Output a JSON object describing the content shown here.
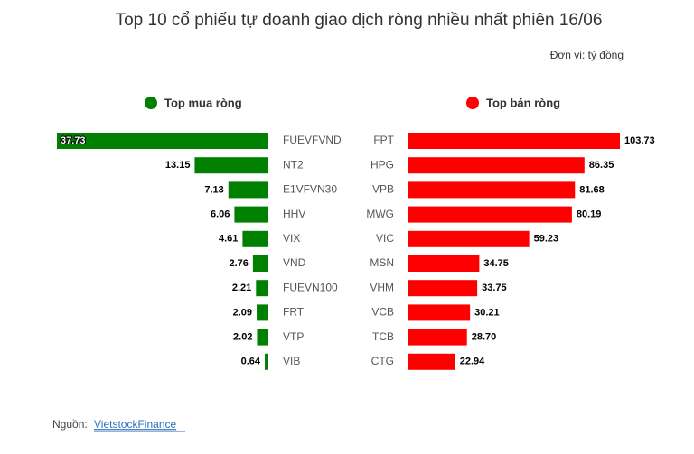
{
  "title": "Top 10 cổ phiếu tự doanh giao dịch ròng nhiều nhất phiên 16/06",
  "unit": "Đơn vị: tỷ đồng",
  "source": {
    "label": "Nguồn:",
    "link": "VietstockFinance"
  },
  "chart_data": [
    {
      "type": "bar",
      "orientation": "left",
      "categories": [
        "FUEVFVND",
        "NT2",
        "E1VFVN30",
        "HHV",
        "VIX",
        "VND",
        "FUEVN100",
        "FRT",
        "VTP",
        "VIB"
      ],
      "series": [
        {
          "name": "Top mua ròng",
          "color": "#008000",
          "values": [
            37.73,
            13.15,
            7.13,
            6.06,
            4.61,
            2.76,
            2.21,
            2.09,
            2.02,
            0.64
          ]
        }
      ]
    },
    {
      "type": "bar",
      "orientation": "right",
      "categories": [
        "FPT",
        "HPG",
        "VPB",
        "MWG",
        "VIC",
        "MSN",
        "VHM",
        "VCB",
        "TCB",
        "CTG"
      ],
      "series": [
        {
          "name": "Top bán ròng",
          "color": "#ff0000",
          "values": [
            103.73,
            86.35,
            81.68,
            80.19,
            59.23,
            34.75,
            33.75,
            30.21,
            28.7,
            22.94
          ],
          "value_labels": [
            "103.73",
            "86.35",
            "81.68",
            "80.19",
            "59.23",
            "34.75",
            "33.75",
            "30.21",
            "28.70",
            "22.94"
          ]
        }
      ]
    }
  ]
}
